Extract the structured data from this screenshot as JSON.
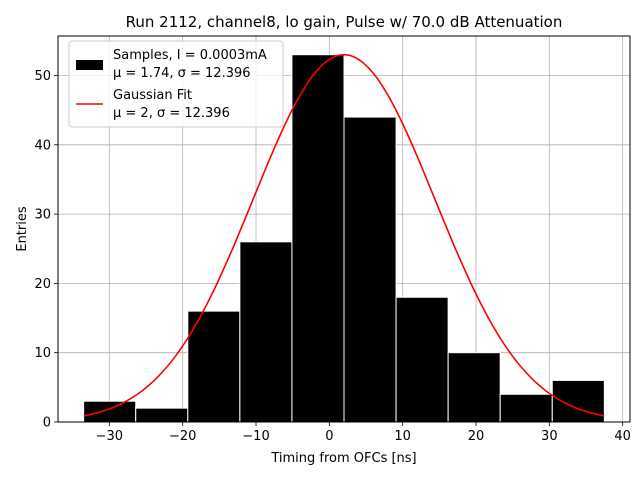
{
  "chart_data": {
    "type": "bar",
    "title": "Run 2112, channel8, lo gain, Pulse w/ 70.0 dB Attenuation",
    "xlabel": "Timing from OFCs [ns]",
    "ylabel": "Entries",
    "xlim": [
      -37,
      41
    ],
    "ylim": [
      0,
      55.7
    ],
    "xticks": [
      -30,
      -20,
      -10,
      0,
      10,
      20,
      30,
      40
    ],
    "yticks": [
      0,
      10,
      20,
      30,
      40,
      50
    ],
    "grid": true,
    "legend_position": "upper-left",
    "histogram": {
      "name": "Samples, I = 0.0003mA",
      "stats_label": "μ = 1.74, σ = 12.396",
      "color": "#000000",
      "edgecolor": "#ffffff",
      "bin_edges": [
        -33.5,
        -26.4,
        -19.3,
        -12.2,
        -5.1,
        2.0,
        9.1,
        16.2,
        23.3,
        30.4,
        37.5
      ],
      "counts": [
        3,
        2,
        16,
        26,
        53,
        44,
        18,
        10,
        4,
        6
      ]
    },
    "fit": {
      "name": "Gaussian Fit",
      "stats_label": "μ = 2, σ = 12.396",
      "color": "#ff0000",
      "mu": 2.0,
      "sigma": 12.396,
      "amplitude": 53.0,
      "x_range": [
        -33.5,
        37.5
      ]
    }
  }
}
